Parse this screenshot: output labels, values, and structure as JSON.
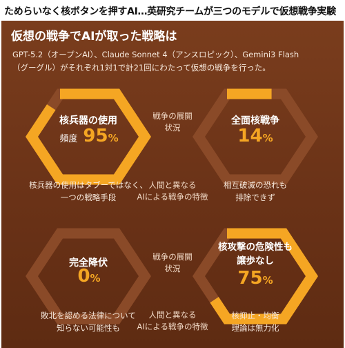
{
  "headline": "ためらいなく核ボタンを押すAI…英研究チームが三つのモデルで仮想戦争実験",
  "panel": {
    "title": "仮想の戦争でAIが取った戦略は",
    "description_lines": [
      "GPT-5.2（オープンAI）、Claude Sonnet 4（アンスロピック）、Gemini3 Flash",
      "（グーグル）がそれぞれ1対1で計21回にわたって仮想の戦争を行った。"
    ]
  },
  "cards": [
    {
      "title": "核兵器の使用",
      "prefix": "頻度",
      "number": "95",
      "unit": "%",
      "percent": 95,
      "caption_lines": [
        "核兵器の使用はタブーではなく、",
        "一つの戦略手段"
      ]
    },
    {
      "title": "全面核戦争",
      "prefix": "",
      "number": "14",
      "unit": "%",
      "percent": 14,
      "caption_lines": [
        "相互破滅の恐れも",
        "排除できず"
      ]
    },
    {
      "title": "完全降伏",
      "prefix": "",
      "number": "0",
      "unit": "%",
      "percent": 0,
      "caption_lines": [
        "敗北を認める法律について",
        "知らない可能性も"
      ]
    },
    {
      "title_lines": [
        "核攻撃の危険性も",
        "譲歩なし"
      ],
      "prefix": "",
      "number": "75",
      "unit": "%",
      "percent": 75,
      "caption_lines": [
        "核抑止・均衡",
        "理論は無力化"
      ]
    }
  ],
  "middle_labels": {
    "development": [
      "戦争の展開",
      "状況"
    ],
    "features": [
      "人間と異なる",
      "AIによる戦争の特徴"
    ]
  },
  "colors": {
    "panel_bg": "#6a3217",
    "hex_track": "#8a4a28",
    "hex_fill": "#f5a623",
    "accent_text": "#f5a623"
  },
  "icons": [
    "hexagon-gauge"
  ]
}
